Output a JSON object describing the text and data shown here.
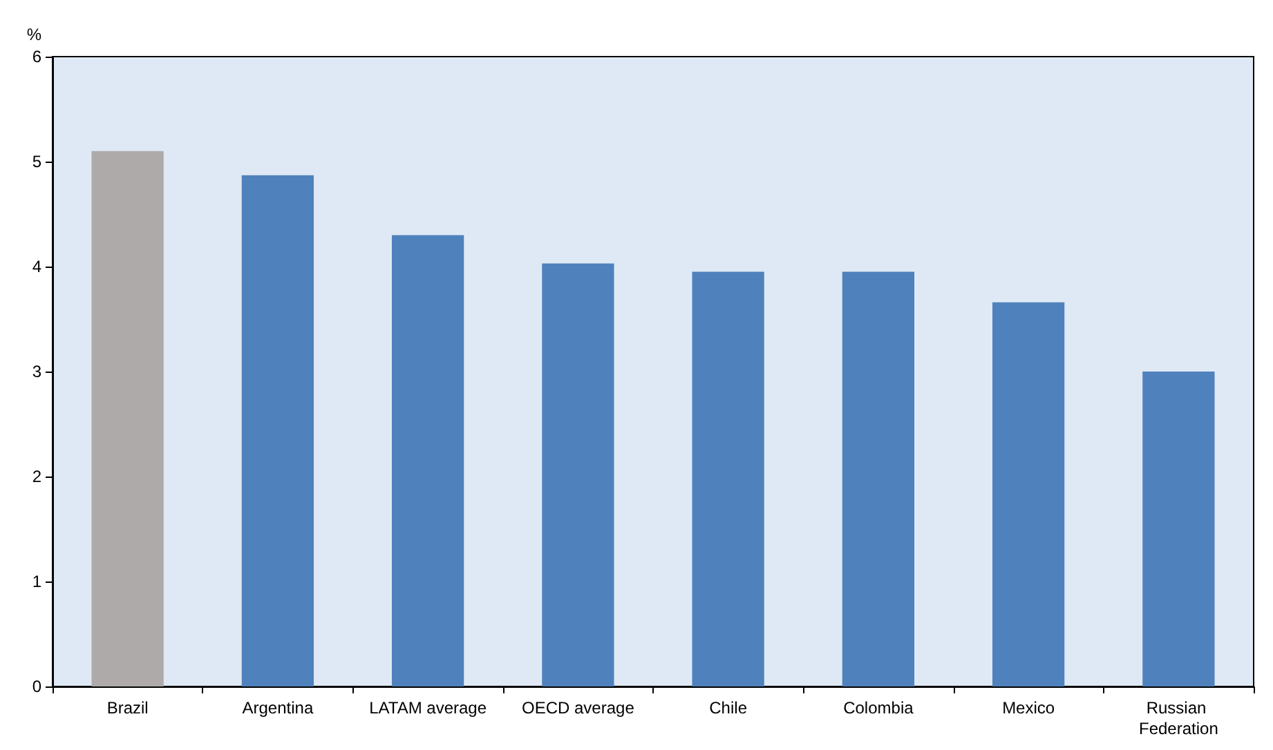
{
  "chart_data": {
    "type": "bar",
    "ylabel": "%",
    "categories": [
      "Brazil",
      "Argentina",
      "LATAM average",
      "OECD average",
      "Chile",
      "Colombia",
      "Mexico",
      "Russian Federation"
    ],
    "values": [
      5.1,
      4.87,
      4.3,
      4.03,
      3.95,
      3.95,
      3.66,
      3.0
    ],
    "colors": [
      "#aeaaaa",
      "#4f81bd",
      "#4f81bd",
      "#4f81bd",
      "#4f81bd",
      "#4f81bd",
      "#4f81bd",
      "#4f81bd"
    ],
    "ylim": [
      0,
      6
    ],
    "yticks": [
      0,
      1,
      2,
      3,
      4,
      5,
      6
    ],
    "grid": false
  }
}
